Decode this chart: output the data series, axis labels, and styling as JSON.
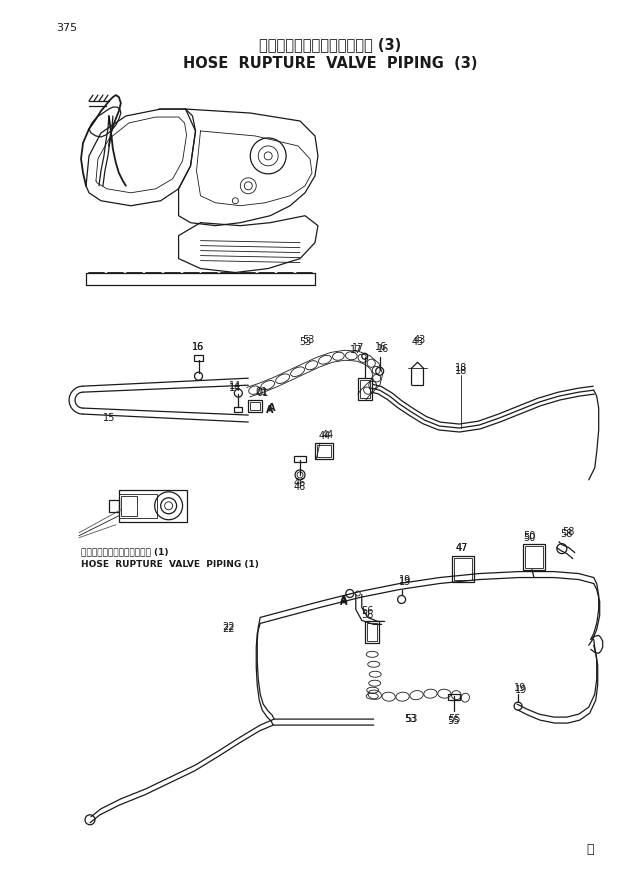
{
  "page_number": "375",
  "title_jp": "ホースラプチャーバルブ配管 (3)",
  "title_en": "HOSE  RUPTURE  VALVE  PIPING  (3)",
  "subtitle_jp": "ホースラプチャーバルブ配管 (1)",
  "subtitle_en": "HOSE  RUPTURE  VALVE  PIPING (1)",
  "copyright": "Ⓜ",
  "bg_color": "#ffffff",
  "line_color": "#1a1a1a"
}
